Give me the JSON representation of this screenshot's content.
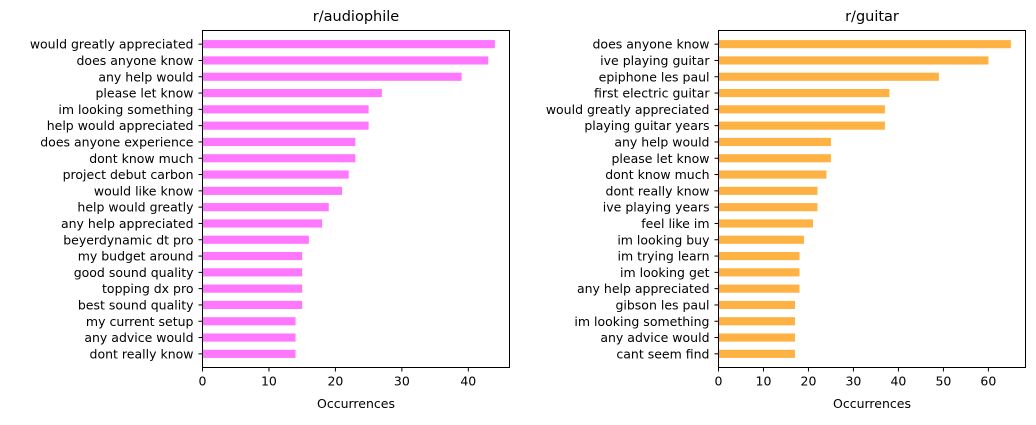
{
  "chart_data": [
    {
      "type": "bar",
      "orientation": "horizontal",
      "title": "r/audiophile",
      "xlabel": "Occurrences",
      "ylabel": "",
      "xlim": [
        0,
        46.2
      ],
      "xticks": [
        0,
        10,
        20,
        30,
        40
      ],
      "color": "#ff77ff",
      "categories": [
        "would greatly appreciated",
        "does anyone know",
        "any help would",
        "please let know",
        "im looking something",
        "help would appreciated",
        "does anyone experience",
        "dont know much",
        "project debut carbon",
        "would like know",
        "help would greatly",
        "any help appreciated",
        "beyerdynamic dt pro",
        "my budget around",
        "good sound quality",
        "topping dx pro",
        "best sound quality",
        "my current setup",
        "any advice would",
        "dont really know"
      ],
      "values": [
        44,
        43,
        39,
        27,
        25,
        25,
        23,
        23,
        22,
        21,
        19,
        18,
        16,
        15,
        15,
        15,
        15,
        14,
        14,
        14
      ]
    },
    {
      "type": "bar",
      "orientation": "horizontal",
      "title": "r/guitar",
      "xlabel": "Occurrences",
      "ylabel": "",
      "xlim": [
        0,
        68.25
      ],
      "xticks": [
        0,
        10,
        20,
        30,
        40,
        50,
        60
      ],
      "color": "#ffb244",
      "categories": [
        "does anyone know",
        "ive playing guitar",
        "epiphone les paul",
        "first electric guitar",
        "would greatly appreciated",
        "playing guitar years",
        "any help would",
        "please let know",
        "dont know much",
        "dont really know",
        "ive playing years",
        "feel like im",
        "im looking buy",
        "im trying learn",
        "im looking get",
        "any help appreciated",
        "gibson les paul",
        "im looking something",
        "any advice would",
        "cant seem find"
      ],
      "values": [
        65,
        60,
        49,
        38,
        37,
        37,
        25,
        25,
        24,
        22,
        22,
        21,
        19,
        18,
        18,
        18,
        17,
        17,
        17,
        17
      ]
    }
  ]
}
